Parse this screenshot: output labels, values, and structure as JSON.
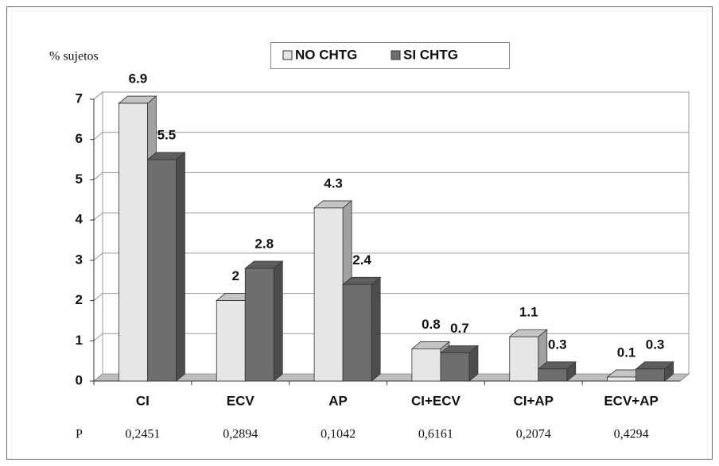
{
  "chart_data": {
    "type": "bar3d",
    "y_label": "% sujetos",
    "categories": [
      "CI",
      "ECV",
      "AP",
      "CI+ECV",
      "CI+AP",
      "ECV+AP"
    ],
    "series": [
      {
        "name": "NO CHTG",
        "color": "#e6e6e6",
        "values": [
          6.9,
          2,
          4.3,
          0.8,
          1.1,
          0.1
        ]
      },
      {
        "name": "SI CHTG",
        "color": "#6e6e6e",
        "values": [
          5.5,
          2.8,
          2.4,
          0.7,
          0.3,
          0.3
        ]
      }
    ],
    "ylim": [
      0,
      7
    ],
    "yticks": [
      0,
      1,
      2,
      3,
      4,
      5,
      6,
      7
    ],
    "grid": true,
    "legend": "top",
    "p_label": "P",
    "p_values": [
      "0,2451",
      "0,2894",
      "0,1042",
      "0,6161",
      "0,2074",
      "0,4294"
    ]
  }
}
